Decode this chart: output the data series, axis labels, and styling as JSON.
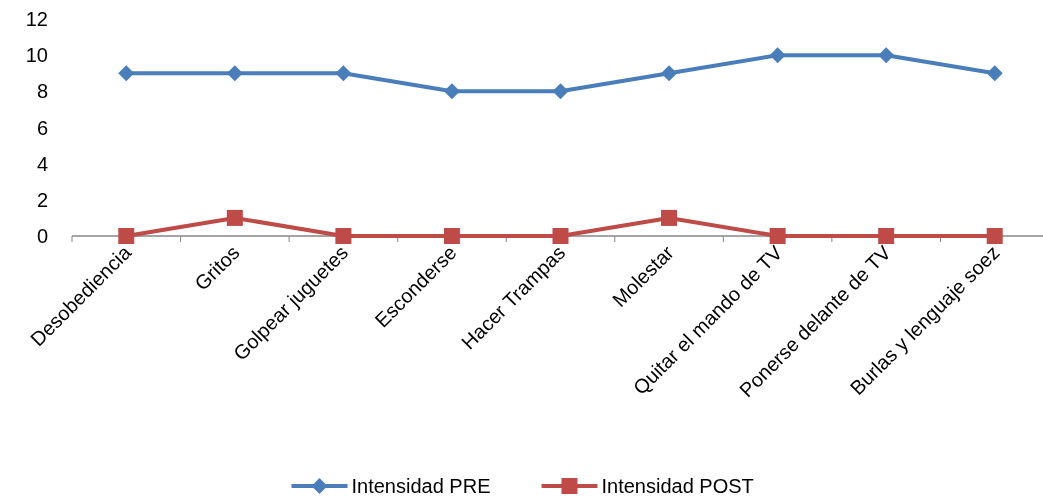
{
  "chart_data": {
    "type": "line",
    "categories": [
      "Desobediencia",
      "Gritos",
      "Golpear juguetes",
      "Esconderse",
      "Hacer Trampas",
      "Molestar",
      "Quitar el mando de TV",
      "Ponerse delante de TV",
      "Burlas y lenguaje soez"
    ],
    "series": [
      {
        "name": "Intensidad PRE",
        "color": "#4a7ebb",
        "marker": "diamond",
        "values": [
          9,
          9,
          9,
          8,
          8,
          9,
          10,
          10,
          9
        ]
      },
      {
        "name": "Intensidad POST",
        "color": "#be4b48",
        "marker": "square",
        "values": [
          0,
          1,
          0,
          0,
          0,
          1,
          0,
          0,
          0
        ]
      }
    ],
    "ylim": [
      0,
      12
    ],
    "yticks": [
      0,
      2,
      4,
      6,
      8,
      10,
      12
    ],
    "grid": false,
    "legend": "bottom"
  }
}
